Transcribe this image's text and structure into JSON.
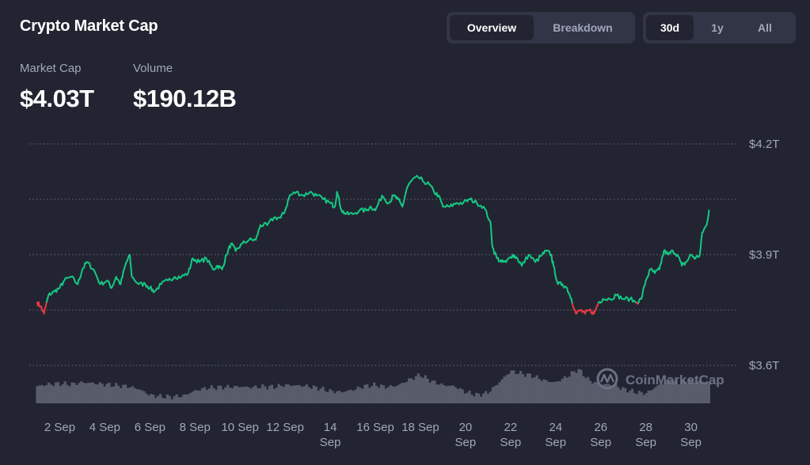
{
  "header": {
    "title": "Crypto Market Cap",
    "view_tabs": [
      {
        "label": "Overview",
        "active": true
      },
      {
        "label": "Breakdown",
        "active": false
      }
    ],
    "range_tabs": [
      {
        "label": "30d",
        "active": true
      },
      {
        "label": "1y",
        "active": false
      },
      {
        "label": "All",
        "active": false
      }
    ]
  },
  "stats": {
    "market_cap_label": "Market Cap",
    "market_cap_value": "$4.03T",
    "volume_label": "Volume",
    "volume_value": "$190.12B"
  },
  "watermark": "CoinMarketCap",
  "colors": {
    "background": "#222531",
    "line_up": "#16c784",
    "line_down": "#ea3943",
    "volume": "#585c6b",
    "grid": "#a1a7bb",
    "text_muted": "#a1a7bb"
  },
  "chart_data": {
    "type": "line",
    "y_axis": {
      "ticks": [
        "$4.2T",
        "$3.9T",
        "$3.6T"
      ],
      "tick_values": [
        4.2,
        3.9,
        3.6
      ],
      "gridlines": [
        4.2,
        4.05,
        3.9,
        3.75,
        3.6
      ],
      "ylim": [
        3.6,
        4.2
      ],
      "unit": "T"
    },
    "x_axis": {
      "ticks": [
        {
          "day": 2,
          "lines": [
            "2 Sep"
          ]
        },
        {
          "day": 4,
          "lines": [
            "4 Sep"
          ]
        },
        {
          "day": 6,
          "lines": [
            "6 Sep"
          ]
        },
        {
          "day": 8,
          "lines": [
            "8 Sep"
          ]
        },
        {
          "day": 10,
          "lines": [
            "10 Sep"
          ]
        },
        {
          "day": 12,
          "lines": [
            "12 Sep"
          ]
        },
        {
          "day": 14,
          "lines": [
            "14",
            "Sep"
          ]
        },
        {
          "day": 16,
          "lines": [
            "16 Sep"
          ]
        },
        {
          "day": 18,
          "lines": [
            "18 Sep"
          ]
        },
        {
          "day": 20,
          "lines": [
            "20",
            "Sep"
          ]
        },
        {
          "day": 22,
          "lines": [
            "22",
            "Sep"
          ]
        },
        {
          "day": 24,
          "lines": [
            "24",
            "Sep"
          ]
        },
        {
          "day": 26,
          "lines": [
            "26",
            "Sep"
          ]
        },
        {
          "day": 28,
          "lines": [
            "28",
            "Sep"
          ]
        },
        {
          "day": 30,
          "lines": [
            "30",
            "Sep"
          ]
        }
      ],
      "xlim": [
        1,
        31.7
      ]
    },
    "baseline": 3.77,
    "series": [
      {
        "values": [
          [
            1.0,
            3.77
          ],
          [
            1.15,
            3.76
          ],
          [
            1.3,
            3.74
          ],
          [
            1.5,
            3.79
          ],
          [
            1.75,
            3.8
          ],
          [
            2.0,
            3.81
          ],
          [
            2.2,
            3.83
          ],
          [
            2.5,
            3.84
          ],
          [
            2.8,
            3.82
          ],
          [
            3.0,
            3.86
          ],
          [
            3.2,
            3.88
          ],
          [
            3.5,
            3.86
          ],
          [
            3.8,
            3.82
          ],
          [
            4.1,
            3.83
          ],
          [
            4.3,
            3.81
          ],
          [
            4.5,
            3.84
          ],
          [
            4.7,
            3.82
          ],
          [
            4.9,
            3.87
          ],
          [
            5.1,
            3.9
          ],
          [
            5.2,
            3.84
          ],
          [
            5.5,
            3.82
          ],
          [
            5.8,
            3.82
          ],
          [
            6.0,
            3.81
          ],
          [
            6.2,
            3.8
          ],
          [
            6.5,
            3.82
          ],
          [
            6.8,
            3.83
          ],
          [
            7.1,
            3.84
          ],
          [
            7.4,
            3.84
          ],
          [
            7.7,
            3.85
          ],
          [
            7.9,
            3.89
          ],
          [
            8.2,
            3.88
          ],
          [
            8.5,
            3.89
          ],
          [
            8.8,
            3.86
          ],
          [
            9.0,
            3.87
          ],
          [
            9.2,
            3.86
          ],
          [
            9.4,
            3.9
          ],
          [
            9.6,
            3.93
          ],
          [
            9.8,
            3.91
          ],
          [
            10.1,
            3.93
          ],
          [
            10.4,
            3.94
          ],
          [
            10.7,
            3.94
          ],
          [
            10.9,
            3.98
          ],
          [
            11.2,
            3.98
          ],
          [
            11.5,
            4.0
          ],
          [
            11.8,
            4.0
          ],
          [
            12.0,
            4.02
          ],
          [
            12.2,
            4.06
          ],
          [
            12.5,
            4.07
          ],
          [
            12.8,
            4.06
          ],
          [
            13.1,
            4.07
          ],
          [
            13.4,
            4.06
          ],
          [
            13.7,
            4.05
          ],
          [
            14.0,
            4.04
          ],
          [
            14.2,
            4.03
          ],
          [
            14.3,
            4.07
          ],
          [
            14.5,
            4.02
          ],
          [
            14.7,
            4.01
          ],
          [
            15.0,
            4.01
          ],
          [
            15.3,
            4.02
          ],
          [
            15.6,
            4.02
          ],
          [
            15.8,
            4.03
          ],
          [
            16.0,
            4.02
          ],
          [
            16.3,
            4.06
          ],
          [
            16.6,
            4.04
          ],
          [
            16.8,
            4.06
          ],
          [
            17.0,
            4.05
          ],
          [
            17.2,
            4.03
          ],
          [
            17.4,
            4.08
          ],
          [
            17.6,
            4.1
          ],
          [
            17.9,
            4.11
          ],
          [
            18.1,
            4.1
          ],
          [
            18.4,
            4.09
          ],
          [
            18.6,
            4.07
          ],
          [
            18.8,
            4.06
          ],
          [
            19.0,
            4.03
          ],
          [
            19.3,
            4.03
          ],
          [
            19.6,
            4.04
          ],
          [
            19.9,
            4.04
          ],
          [
            20.2,
            4.05
          ],
          [
            20.5,
            4.04
          ],
          [
            20.8,
            4.03
          ],
          [
            21.1,
            3.99
          ],
          [
            21.2,
            3.92
          ],
          [
            21.4,
            3.89
          ],
          [
            21.6,
            3.88
          ],
          [
            21.8,
            3.88
          ],
          [
            22.1,
            3.9
          ],
          [
            22.3,
            3.89
          ],
          [
            22.5,
            3.87
          ],
          [
            22.8,
            3.9
          ],
          [
            23.1,
            3.88
          ],
          [
            23.4,
            3.9
          ],
          [
            23.6,
            3.91
          ],
          [
            23.8,
            3.9
          ],
          [
            23.9,
            3.87
          ],
          [
            24.1,
            3.82
          ],
          [
            24.3,
            3.82
          ],
          [
            24.5,
            3.81
          ],
          [
            24.7,
            3.78
          ],
          [
            24.9,
            3.74
          ],
          [
            25.1,
            3.75
          ],
          [
            25.3,
            3.74
          ],
          [
            25.5,
            3.75
          ],
          [
            25.7,
            3.74
          ],
          [
            25.9,
            3.77
          ],
          [
            26.1,
            3.78
          ],
          [
            26.4,
            3.78
          ],
          [
            26.7,
            3.79
          ],
          [
            27.0,
            3.78
          ],
          [
            27.3,
            3.78
          ],
          [
            27.6,
            3.77
          ],
          [
            27.8,
            3.78
          ],
          [
            28.0,
            3.83
          ],
          [
            28.2,
            3.86
          ],
          [
            28.4,
            3.85
          ],
          [
            28.6,
            3.86
          ],
          [
            28.8,
            3.91
          ],
          [
            29.0,
            3.9
          ],
          [
            29.2,
            3.91
          ],
          [
            29.4,
            3.9
          ],
          [
            29.6,
            3.87
          ],
          [
            29.8,
            3.88
          ],
          [
            30.0,
            3.9
          ],
          [
            30.2,
            3.89
          ],
          [
            30.4,
            3.9
          ],
          [
            30.5,
            3.96
          ],
          [
            30.7,
            3.98
          ],
          [
            30.8,
            4.02
          ]
        ]
      }
    ],
    "volume_profile": [
      [
        1.0,
        0.45
      ],
      [
        1.5,
        0.5
      ],
      [
        2.0,
        0.52
      ],
      [
        2.5,
        0.5
      ],
      [
        3.0,
        0.55
      ],
      [
        3.5,
        0.53
      ],
      [
        4.0,
        0.5
      ],
      [
        4.5,
        0.47
      ],
      [
        5.0,
        0.45
      ],
      [
        5.5,
        0.38
      ],
      [
        6.0,
        0.22
      ],
      [
        6.5,
        0.18
      ],
      [
        7.0,
        0.17
      ],
      [
        7.5,
        0.2
      ],
      [
        8.0,
        0.33
      ],
      [
        8.5,
        0.4
      ],
      [
        9.0,
        0.42
      ],
      [
        9.5,
        0.43
      ],
      [
        10.0,
        0.44
      ],
      [
        10.5,
        0.42
      ],
      [
        11.0,
        0.44
      ],
      [
        11.5,
        0.43
      ],
      [
        12.0,
        0.48
      ],
      [
        12.5,
        0.47
      ],
      [
        13.0,
        0.45
      ],
      [
        13.5,
        0.4
      ],
      [
        14.0,
        0.32
      ],
      [
        14.5,
        0.3
      ],
      [
        15.0,
        0.35
      ],
      [
        15.5,
        0.45
      ],
      [
        16.0,
        0.48
      ],
      [
        16.5,
        0.43
      ],
      [
        17.0,
        0.47
      ],
      [
        17.5,
        0.62
      ],
      [
        18.0,
        0.75
      ],
      [
        18.5,
        0.58
      ],
      [
        19.0,
        0.48
      ],
      [
        19.5,
        0.45
      ],
      [
        20.0,
        0.3
      ],
      [
        20.5,
        0.22
      ],
      [
        21.0,
        0.28
      ],
      [
        21.5,
        0.55
      ],
      [
        22.0,
        0.85
      ],
      [
        22.5,
        0.78
      ],
      [
        23.0,
        0.72
      ],
      [
        23.5,
        0.6
      ],
      [
        24.0,
        0.55
      ],
      [
        24.5,
        0.7
      ],
      [
        25.0,
        0.9
      ],
      [
        25.5,
        0.6
      ],
      [
        26.0,
        0.5
      ],
      [
        26.5,
        0.5
      ],
      [
        27.0,
        0.38
      ],
      [
        27.5,
        0.3
      ],
      [
        28.0,
        0.26
      ],
      [
        28.5,
        0.45
      ],
      [
        29.0,
        0.6
      ],
      [
        29.5,
        0.55
      ],
      [
        30.0,
        0.6
      ],
      [
        30.5,
        0.58
      ],
      [
        30.8,
        0.55
      ]
    ]
  }
}
